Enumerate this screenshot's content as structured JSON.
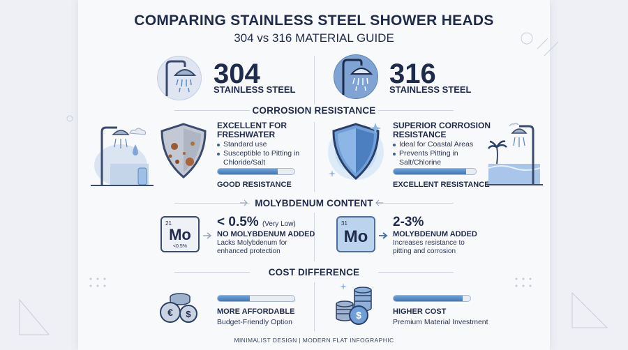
{
  "header": {
    "title": "COMPARING STAINLESS STEEL SHOWER HEADS",
    "subtitle": "304 vs 316 MATERIAL GUIDE"
  },
  "grades": [
    {
      "number": "304",
      "label": "STAINLESS STEEL",
      "circle_color": "#dfe6f1",
      "icon": "shower-head-icon"
    },
    {
      "number": "316",
      "label": "STAINLESS STEEL",
      "circle_color": "#8fb0d9",
      "icon": "shower-head-icon"
    }
  ],
  "corrosion": {
    "title": "CORROSION RESISTANCE",
    "left": {
      "title": "EXCELLENT FOR FRESHWATER",
      "bullets": [
        "Standard use",
        "Susceptible to Pitting in Chloride/Salt"
      ],
      "bar_level": 0.78,
      "rating": "GOOD RESISTANCE",
      "icons": [
        "rusted-shield-icon",
        "shower-icon",
        "water-drop-icon",
        "cloud-icon",
        "bottle-icon"
      ]
    },
    "right": {
      "title": "SUPERIOR CORROSION RESISTANCE",
      "bullets": [
        "Ideal for Coastal Areas",
        "Prevents Pitting in Salt/Chlorine"
      ],
      "bar_level": 0.88,
      "rating": "EXCELLENT RESISTANCE",
      "icons": [
        "glowing-shield-icon",
        "coastal-shower-icon",
        "palm-tree-icon",
        "cloud-icon"
      ]
    }
  },
  "molybdenum": {
    "title": "MOLYBDENUM CONTENT",
    "left": {
      "tile_number": "21",
      "tile_symbol": "Mo",
      "tile_sub": "<0.5%",
      "value": "< 0.5%",
      "value_note": "(Very Low)",
      "heading": "NO MOLYBDENUM ADDED",
      "desc_lines": [
        "Lacks Molybdenum for",
        "enhanced protection"
      ]
    },
    "right": {
      "tile_number": "31",
      "tile_symbol": "Mo",
      "value": "2-3%",
      "heading": "MOLYBDENUM ADDED",
      "desc_lines": [
        "Increases resistance to",
        "pitting and corrosion"
      ]
    }
  },
  "cost": {
    "title": "COST DIFFERENCE",
    "left": {
      "bar_level": 0.42,
      "heading": "MORE AFFORDABLE",
      "desc": "Budget-Friendly Option",
      "icon": "euro-dollar-coins-icon"
    },
    "right": {
      "bar_level": 0.9,
      "heading": "HIGHER COST",
      "desc": "Premium Material Investment",
      "icon": "dollar-coin-stack-icon"
    }
  },
  "footer": "MINIMALIST DESIGN | MODERN FLAT INFOGRAPHIC",
  "colors": {
    "navy": "#1f2b4a",
    "accent_blue": "#3f77b8",
    "light_blue": "#bcd3ee",
    "rust": "#9a5a32"
  }
}
